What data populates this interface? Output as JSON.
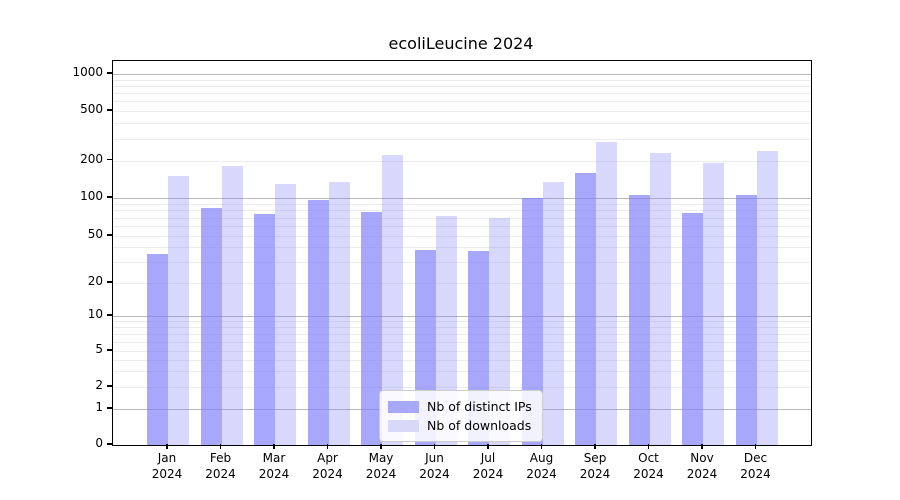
{
  "figure": {
    "title": "ecoliLeucine 2024"
  },
  "chart_data": {
    "type": "bar",
    "title": "ecoliLeucine 2024",
    "xlabel": "",
    "ylabel": "",
    "year": "2024",
    "months": [
      "Jan",
      "Feb",
      "Mar",
      "Apr",
      "May",
      "Jun",
      "Jul",
      "Aug",
      "Sep",
      "Oct",
      "Nov",
      "Dec"
    ],
    "categories": [
      "Jan 2024",
      "Feb 2024",
      "Mar 2024",
      "Apr 2024",
      "May 2024",
      "Jun 2024",
      "Jul 2024",
      "Aug 2024",
      "Sep 2024",
      "Oct 2024",
      "Nov 2024",
      "Dec 2024"
    ],
    "series": [
      {
        "name": "Nb of distinct IPs",
        "values": [
          35,
          84,
          75,
          96,
          77,
          38,
          37,
          100,
          160,
          105,
          76,
          106
        ],
        "color": "#a8a8f8",
        "fill": "rgba(125,125,250,0.68)"
      },
      {
        "name": "Nb of downloads",
        "values": [
          150,
          180,
          130,
          135,
          220,
          72,
          69,
          135,
          280,
          230,
          190,
          240
        ],
        "color": "#d8d8f9",
        "fill": "rgba(125,125,250,0.30)"
      }
    ],
    "y_axis": {
      "scale": "symlog",
      "tick_values": [
        0,
        1,
        2,
        5,
        10,
        20,
        50,
        100,
        200,
        500,
        1000
      ],
      "tick_labels": [
        "0",
        "1",
        "2",
        "5",
        "10",
        "20",
        "50",
        "100",
        "200",
        "500",
        "1000"
      ],
      "major_tick_values": [
        1,
        10,
        100,
        1000
      ],
      "ylim": [
        0,
        1400
      ]
    },
    "grid": "on",
    "legend_position": "lower center inside"
  }
}
